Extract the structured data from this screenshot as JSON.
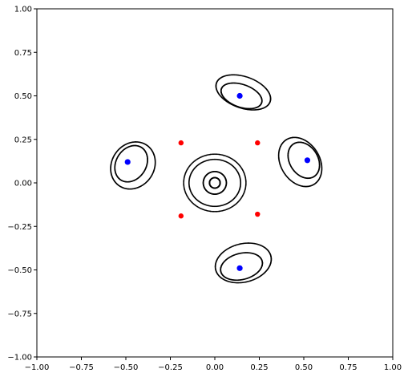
{
  "chart_data": {
    "type": "scatter",
    "title": "",
    "xlabel": "",
    "ylabel": "",
    "xlim": [
      -1.0,
      1.0
    ],
    "ylim": [
      -1.0,
      1.0
    ],
    "grid": false,
    "legend": "none",
    "xticks": [
      "−1.00",
      "−0.75",
      "−0.50",
      "−0.25",
      "0.00",
      "0.25",
      "0.50",
      "0.75",
      "1.00"
    ],
    "yticks": [
      "1.00",
      "0.75",
      "0.50",
      "0.25",
      "0.00",
      "−0.25",
      "−0.50",
      "−0.75",
      "−1.00"
    ],
    "xtick_values": [
      -1.0,
      -0.75,
      -0.5,
      -0.25,
      0.0,
      0.25,
      0.5,
      0.75,
      1.0
    ],
    "ytick_values": [
      1.0,
      0.75,
      0.5,
      0.25,
      0.0,
      -0.25,
      -0.5,
      -0.75,
      -1.0
    ],
    "series": [
      {
        "color": "#0000ff",
        "marker": "circle",
        "points": [
          [
            0.14,
            0.5
          ],
          [
            -0.49,
            0.12
          ],
          [
            0.52,
            0.13
          ],
          [
            0.14,
            -0.49
          ]
        ]
      },
      {
        "color": "#ff0000",
        "marker": "circle",
        "points": [
          [
            -0.19,
            0.23
          ],
          [
            0.24,
            0.23
          ],
          [
            -0.19,
            -0.19
          ],
          [
            0.24,
            -0.18
          ]
        ]
      },
      {
        "color": "#000000",
        "marker": "dot",
        "orbits": [
          {
            "cx": 0.0,
            "cy": 0.0,
            "rx": 0.03,
            "ry": 0.03
          },
          {
            "cx": 0.0,
            "cy": 0.0,
            "rx": 0.065,
            "ry": 0.065
          },
          {
            "cx": 0.0,
            "cy": 0.0,
            "rx": 0.145,
            "ry": 0.135
          },
          {
            "cx": 0.0,
            "cy": 0.0,
            "rx": 0.175,
            "ry": 0.165
          },
          {
            "cx": 0.16,
            "cy": 0.52,
            "rx": 0.16,
            "ry": 0.09,
            "rot": -20
          },
          {
            "cx": 0.15,
            "cy": 0.5,
            "rx": 0.12,
            "ry": 0.065,
            "rot": -20
          },
          {
            "cx": -0.46,
            "cy": 0.1,
            "rx": 0.12,
            "ry": 0.14,
            "rot": -30
          },
          {
            "cx": -0.47,
            "cy": 0.11,
            "rx": 0.085,
            "ry": 0.11,
            "rot": -30
          },
          {
            "cx": 0.48,
            "cy": 0.12,
            "rx": 0.11,
            "ry": 0.15,
            "rot": 30
          },
          {
            "cx": 0.5,
            "cy": 0.13,
            "rx": 0.08,
            "ry": 0.11,
            "rot": 30
          },
          {
            "cx": 0.16,
            "cy": -0.46,
            "rx": 0.16,
            "ry": 0.11,
            "rot": 15
          },
          {
            "cx": 0.15,
            "cy": -0.48,
            "rx": 0.12,
            "ry": 0.075,
            "rot": 15
          }
        ]
      }
    ]
  }
}
